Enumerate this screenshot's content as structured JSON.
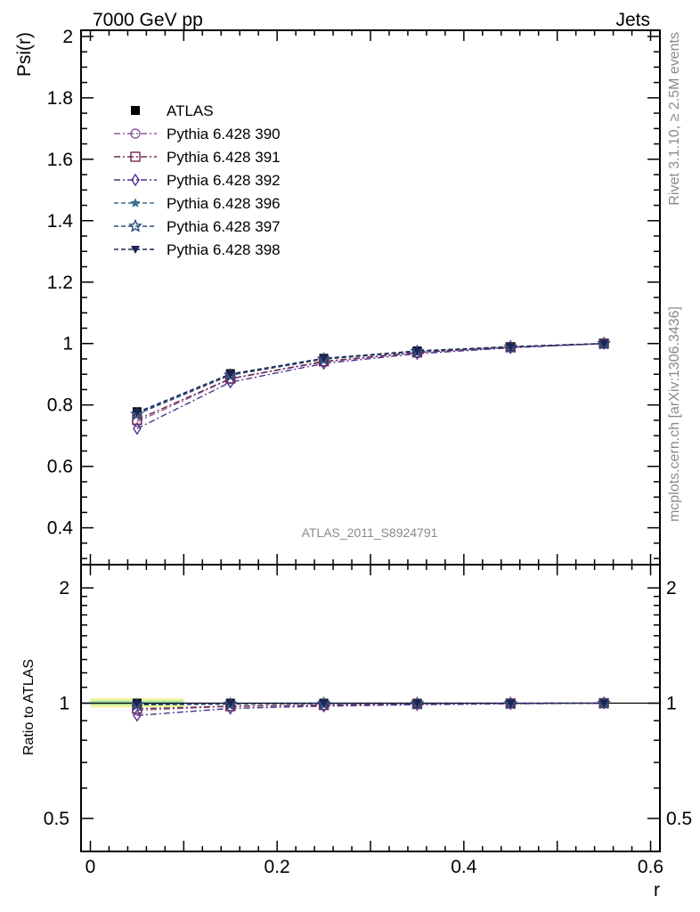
{
  "header": {
    "left_title": "7000 GeV pp",
    "right_title": "Jets"
  },
  "side_labels": {
    "rivet": "Rivet 3.1.10, ≥ 2.5M events",
    "mcplots": "mcplots.cern.ch [arXiv:1306.3436]"
  },
  "analysis_label": "ATLAS_2011_S8924791",
  "chart_data": [
    {
      "type": "line",
      "panel": "main",
      "ylabel": "Psi(r)",
      "xlabel": "",
      "xlim": [
        -0.01,
        0.61
      ],
      "ylim": [
        0.28,
        2.02
      ],
      "x_ticks": [
        "0",
        "0.2",
        "0.4",
        "0.6"
      ],
      "y_ticks": [
        "0.4",
        "0.6",
        "0.8",
        "1",
        "1.2",
        "1.4",
        "1.6",
        "1.8",
        "2"
      ],
      "legend_position": "top-left",
      "x": [
        0.05,
        0.15,
        0.25,
        0.35,
        0.45,
        0.55
      ],
      "series": [
        {
          "name": "ATLAS",
          "color": "#000000",
          "marker": "filled-square",
          "line": "none",
          "values": [
            0.778,
            0.902,
            0.952,
            0.976,
            0.99,
            1.0
          ]
        },
        {
          "name": "Pythia 6.428 390",
          "color": "#8e5a9a",
          "marker": "open-circle",
          "line": "dashdot",
          "values": [
            0.745,
            0.885,
            0.94,
            0.97,
            0.988,
            1.0
          ]
        },
        {
          "name": "Pythia 6.428 391",
          "color": "#6e2d4d",
          "marker": "open-square",
          "line": "dashdot",
          "values": [
            0.752,
            0.886,
            0.942,
            0.971,
            0.988,
            1.0
          ]
        },
        {
          "name": "Pythia 6.428 392",
          "color": "#4f3391",
          "marker": "open-diamond",
          "line": "dashdot",
          "values": [
            0.723,
            0.874,
            0.935,
            0.967,
            0.986,
            1.0
          ]
        },
        {
          "name": "Pythia 6.428 396",
          "color": "#3d6d8e",
          "marker": "filled-star",
          "line": "dashed",
          "values": [
            0.772,
            0.898,
            0.95,
            0.975,
            0.989,
            1.0
          ]
        },
        {
          "name": "Pythia 6.428 397",
          "color": "#2d4a78",
          "marker": "open-star",
          "line": "dashed",
          "values": [
            0.77,
            0.897,
            0.949,
            0.974,
            0.989,
            1.0
          ]
        },
        {
          "name": "Pythia 6.428 398",
          "color": "#1c2555",
          "marker": "filled-down-triangle",
          "line": "dashed",
          "values": [
            0.776,
            0.901,
            0.952,
            0.976,
            0.99,
            1.0
          ]
        }
      ]
    },
    {
      "type": "line",
      "panel": "ratio",
      "ylabel": "Ratio to ATLAS",
      "xlabel": "r",
      "y_scale": "log",
      "xlim": [
        -0.01,
        0.61
      ],
      "ylim": [
        0.41,
        2.3
      ],
      "x_ticks": [
        "0",
        "0.2",
        "0.4",
        "0.6"
      ],
      "y_ticks": [
        "0.5",
        "1",
        "2"
      ],
      "right_y_ticks": [
        "0.5",
        "1",
        "2"
      ],
      "x": [
        0.05,
        0.15,
        0.25,
        0.35,
        0.45,
        0.55
      ],
      "uncertainty_band": {
        "x_range": [
          0.0,
          0.1
        ],
        "outer": [
          0.975,
          1.03
        ],
        "inner": [
          0.99,
          1.015
        ]
      },
      "series": [
        {
          "name": "ATLAS",
          "values": [
            1.0,
            1.0,
            1.0,
            1.0,
            1.0,
            1.0
          ]
        },
        {
          "name": "Pythia 6.428 390",
          "values": [
            0.958,
            0.981,
            0.987,
            0.994,
            0.998,
            1.0
          ]
        },
        {
          "name": "Pythia 6.428 391",
          "values": [
            0.967,
            0.982,
            0.989,
            0.995,
            0.998,
            1.0
          ]
        },
        {
          "name": "Pythia 6.428 392",
          "values": [
            0.929,
            0.969,
            0.982,
            0.991,
            0.996,
            1.0
          ]
        },
        {
          "name": "Pythia 6.428 396",
          "values": [
            0.992,
            0.996,
            0.998,
            0.999,
            0.999,
            1.0
          ]
        },
        {
          "name": "Pythia 6.428 397",
          "values": [
            0.99,
            0.994,
            0.997,
            0.998,
            0.999,
            1.0
          ]
        },
        {
          "name": "Pythia 6.428 398",
          "values": [
            0.997,
            0.999,
            1.0,
            1.0,
            1.0,
            1.0
          ]
        }
      ]
    }
  ]
}
